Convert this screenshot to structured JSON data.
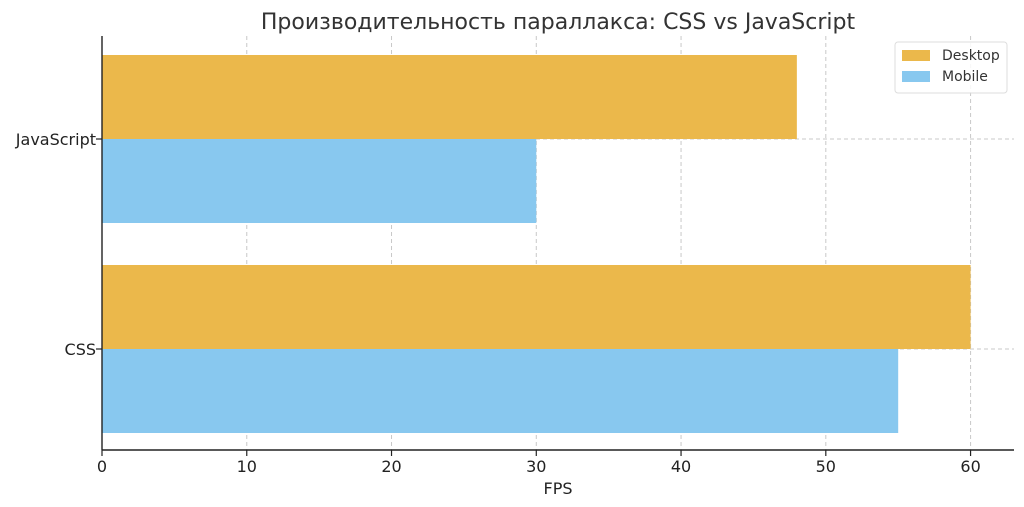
{
  "chart_data": {
    "type": "bar",
    "orientation": "horizontal",
    "title": "Производительность параллакса: CSS vs JavaScript",
    "xlabel": "FPS",
    "ylabel": "",
    "categories": [
      "CSS",
      "JavaScript"
    ],
    "series": [
      {
        "name": "Desktop",
        "color": "#ebb84b",
        "values": [
          60,
          48
        ]
      },
      {
        "name": "Mobile",
        "color": "#88c8ef",
        "values": [
          55,
          30
        ]
      }
    ],
    "xlim": [
      0,
      63
    ],
    "x_ticks": [
      0,
      10,
      20,
      30,
      40,
      50,
      60
    ],
    "grid": true,
    "legend_position": "top-right"
  }
}
